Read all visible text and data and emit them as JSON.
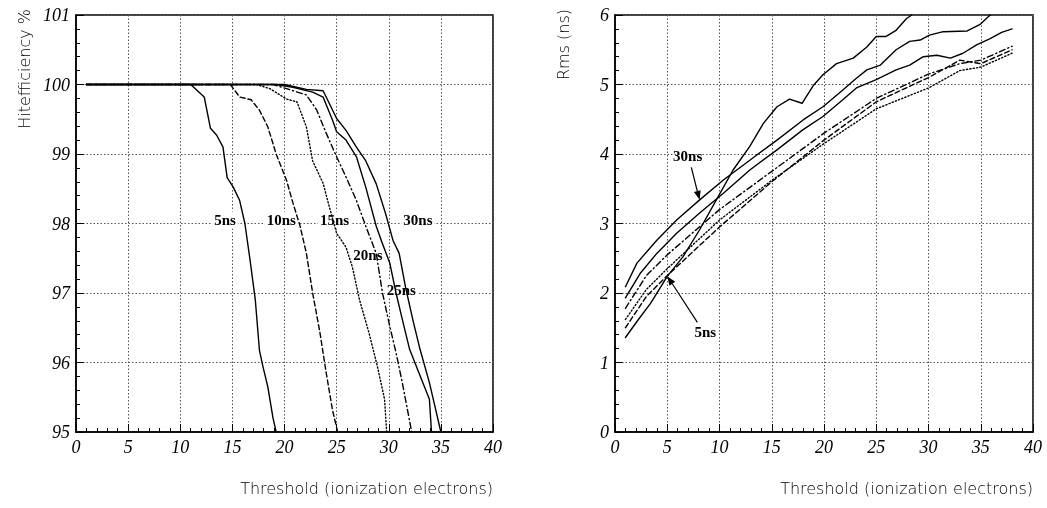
{
  "chart_data": [
    {
      "type": "line",
      "xlabel": "Threshold (ionization electrons)",
      "ylabel": "Hitefficiency %",
      "xlim": [
        0,
        40
      ],
      "xticks": [
        0,
        5,
        10,
        15,
        20,
        25,
        30,
        35,
        40
      ],
      "ylim": [
        95,
        101
      ],
      "yticks": [
        95,
        96,
        97,
        98,
        99,
        100,
        101
      ],
      "grid": true,
      "marker": "none",
      "series": [
        {
          "color": "#000000",
          "line_style": "solid",
          "x": [
            1,
            11,
            12.3,
            12.9,
            13.5,
            14.1,
            14.5,
            15.1,
            15.7,
            16.2,
            16.7,
            17.2,
            17.6,
            17.95,
            18.4,
            18.9,
            19.2
          ],
          "values": [
            100,
            100,
            99.82,
            99.37,
            99.27,
            99.1,
            98.66,
            98.52,
            98.33,
            98.0,
            97.47,
            96.9,
            96.17,
            95.93,
            95.65,
            95.2,
            95
          ]
        },
        {
          "color": "#000000",
          "line_style": "dashed",
          "x": [
            1,
            14.8,
            15.7,
            16.8,
            17.6,
            18.4,
            19.2,
            20.2,
            20.8,
            21.5,
            22.1,
            22.7,
            23.4,
            24.0,
            24.6,
            25.1
          ],
          "values": [
            100,
            100,
            99.82,
            99.78,
            99.63,
            99.39,
            99.0,
            98.62,
            98.3,
            97.96,
            97.57,
            97.0,
            96.43,
            95.85,
            95.32,
            95
          ]
        },
        {
          "color": "#000000",
          "line_style": "dotted",
          "x": [
            1,
            17.3,
            18.6,
            20.2,
            21.2,
            22.1,
            22.7,
            23.7,
            24.3,
            25.0,
            25.9,
            26.5,
            27.2,
            28.1,
            28.9,
            29.6,
            29.8
          ],
          "values": [
            100,
            100,
            99.94,
            99.79,
            99.75,
            99.39,
            98.9,
            98.58,
            98.24,
            97.86,
            97.66,
            97.38,
            96.9,
            96.43,
            95.95,
            95.47,
            95
          ]
        },
        {
          "color": "#000000",
          "line_style": "dashdot",
          "x": [
            1,
            18.9,
            20.2,
            22.1,
            23.1,
            24.0,
            25.0,
            25.9,
            26.9,
            27.8,
            28.8,
            29.4,
            30.1,
            30.7,
            31.3,
            32.2
          ],
          "values": [
            100,
            100,
            99.94,
            99.85,
            99.63,
            99.3,
            98.96,
            98.67,
            98.33,
            97.96,
            97.57,
            97.0,
            96.52,
            96.14,
            95.71,
            95
          ]
        },
        {
          "color": "#000000",
          "line_style": "solid",
          "x": [
            1,
            19.2,
            20.8,
            22.7,
            23.7,
            24.6,
            25.0,
            25.9,
            26.9,
            27.8,
            28.8,
            29.4,
            30.1,
            30.7,
            31.3,
            32.0,
            32.9,
            33.9,
            34.1
          ],
          "values": [
            100,
            100,
            99.96,
            99.89,
            99.82,
            99.49,
            99.32,
            99.2,
            98.96,
            98.52,
            97.96,
            97.71,
            97.43,
            97.0,
            96.62,
            96.19,
            95.85,
            95.47,
            95
          ]
        },
        {
          "color": "#000000",
          "line_style": "solid",
          "x": [
            1,
            20.0,
            22.1,
            23.7,
            24.0,
            25.0,
            25.9,
            26.9,
            27.8,
            28.8,
            29.7,
            30.4,
            31.0,
            31.6,
            32.3,
            33.0,
            33.9,
            35.0
          ],
          "values": [
            100,
            100,
            99.93,
            99.91,
            99.82,
            99.51,
            99.34,
            99.1,
            98.9,
            98.57,
            98.14,
            97.76,
            97.57,
            97.09,
            96.62,
            96.19,
            95.71,
            95
          ]
        }
      ],
      "annotations": [
        {
          "text": "5ns",
          "x": 14.3,
          "y": 98.05
        },
        {
          "text": "10ns",
          "x": 19.7,
          "y": 98.05
        },
        {
          "text": "15ns",
          "x": 24.8,
          "y": 98.05
        },
        {
          "text": "20ns",
          "x": 28.0,
          "y": 97.55
        },
        {
          "text": "25ns",
          "x": 31.2,
          "y": 97.05
        },
        {
          "text": "30ns",
          "x": 32.8,
          "y": 98.05
        }
      ]
    },
    {
      "type": "line",
      "xlabel": "Threshold (ionization electrons)",
      "ylabel": "Rms (ns)",
      "xlim": [
        0,
        40
      ],
      "xticks": [
        0,
        5,
        10,
        15,
        20,
        25,
        30,
        35,
        40
      ],
      "ylim": [
        0,
        6
      ],
      "yticks": [
        0,
        1,
        2,
        3,
        4,
        5,
        6
      ],
      "grid": true,
      "marker": "none",
      "series": [
        {
          "color": "#000000",
          "line_style": "solid",
          "x": [
            1,
            2.1,
            3.4,
            5.0,
            6.5,
            8.1,
            9.7,
            11.3,
            12.9,
            14.2,
            15.5,
            16.7,
            17.9,
            19.0,
            19.9,
            21.2,
            22.8,
            24.1,
            25.0,
            25.9,
            26.9,
            27.9,
            28.4
          ],
          "values": [
            1.36,
            1.59,
            1.85,
            2.24,
            2.52,
            2.91,
            3.34,
            3.77,
            4.11,
            4.44,
            4.68,
            4.79,
            4.73,
            4.99,
            5.14,
            5.3,
            5.38,
            5.54,
            5.69,
            5.69,
            5.78,
            5.95,
            6.0
          ]
        },
        {
          "color": "#000000",
          "line_style": "solid",
          "x": [
            1,
            2.1,
            4.0,
            5.9,
            8.1,
            10.4,
            12.9,
            15.5,
            18.0,
            19.9,
            21.8,
            23.1,
            24.1,
            25.4,
            26.9,
            28.2,
            29.2,
            30.1,
            31.4,
            33.7,
            34.9,
            35.9
          ],
          "values": [
            2.09,
            2.43,
            2.76,
            3.05,
            3.34,
            3.63,
            3.91,
            4.2,
            4.49,
            4.68,
            4.92,
            5.09,
            5.21,
            5.28,
            5.5,
            5.62,
            5.64,
            5.71,
            5.76,
            5.77,
            5.86,
            6.0
          ]
        },
        {
          "color": "#000000",
          "line_style": "solid",
          "x": [
            1,
            2.4,
            4.0,
            5.9,
            8.1,
            10.4,
            12.9,
            15.5,
            18.0,
            19.9,
            21.8,
            23.1,
            25.0,
            26.9,
            28.2,
            29.5,
            30.8,
            32.1,
            33.3,
            34.6,
            35.9,
            37.0,
            38.0
          ],
          "values": [
            1.93,
            2.28,
            2.57,
            2.86,
            3.15,
            3.44,
            3.77,
            4.06,
            4.35,
            4.54,
            4.78,
            4.95,
            5.07,
            5.21,
            5.28,
            5.4,
            5.42,
            5.38,
            5.45,
            5.57,
            5.66,
            5.75,
            5.8
          ]
        },
        {
          "color": "#000000",
          "line_style": "dashdot",
          "x": [
            1,
            3,
            5,
            10,
            15,
            20,
            25,
            30,
            33,
            35,
            38
          ],
          "values": [
            1.78,
            2.25,
            2.55,
            3.2,
            3.75,
            4.3,
            4.8,
            5.15,
            5.3,
            5.35,
            5.55
          ]
        },
        {
          "color": "#000000",
          "line_style": "dotted",
          "x": [
            1,
            3,
            5,
            10,
            15,
            20,
            25,
            30,
            33,
            35,
            38
          ],
          "values": [
            1.62,
            2.05,
            2.35,
            3.05,
            3.62,
            4.15,
            4.65,
            4.95,
            5.2,
            5.25,
            5.45
          ]
        },
        {
          "color": "#000000",
          "line_style": "dashed",
          "x": [
            1,
            3,
            5,
            10,
            15,
            20,
            25,
            30,
            33,
            35,
            38
          ],
          "values": [
            1.5,
            1.95,
            2.25,
            2.95,
            3.6,
            4.2,
            4.75,
            5.1,
            5.35,
            5.3,
            5.5
          ]
        }
      ],
      "annotations": [
        {
          "text": "30ns",
          "x": 8.1,
          "y": 3.34
        },
        {
          "text": "5ns",
          "x": 5.0,
          "y": 2.24
        }
      ]
    }
  ]
}
